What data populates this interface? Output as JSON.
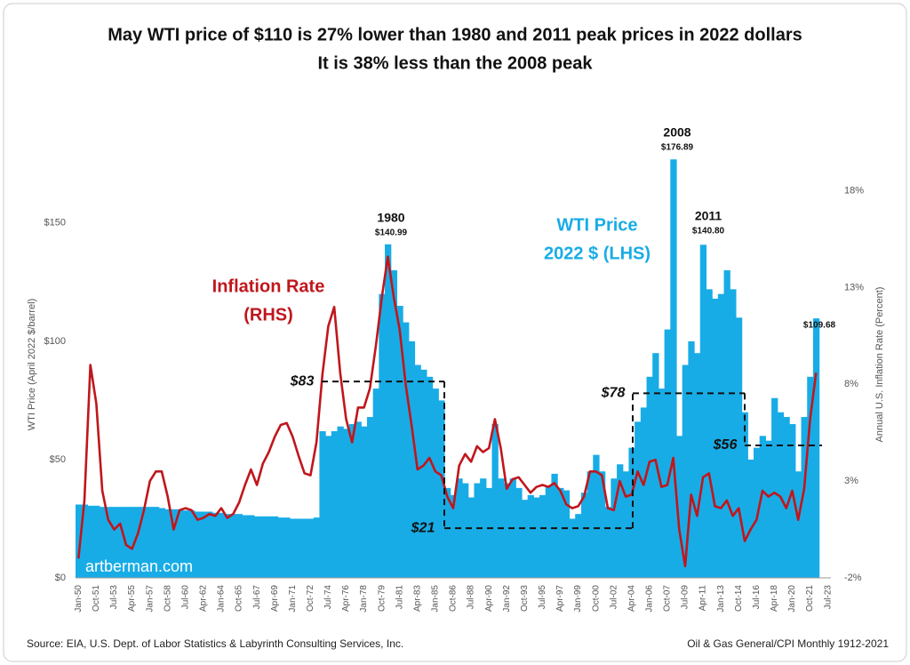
{
  "chart_data": {
    "type": "bar",
    "title": "May WTI price of $110 is 27% lower than 1980 and 2011 peak prices in 2022 dollars",
    "subtitle": "It is 38% less than the 2008 peak",
    "y_label": "WTI Price (April 2022 $/barrel)",
    "y2_label": "Annual U.S. Inflation Rate (Percent)",
    "source": "Source: EIA, U.S. Dept. of Labor Statistics & Labyrinth Consulting Services, Inc.",
    "note": "Oil & Gas General/CPI Monthly 1912-2021",
    "watermark": "artberman.com",
    "grid": false,
    "ylim": [
      0,
      180
    ],
    "yticks": [
      {
        "value": 0,
        "label": "$0"
      },
      {
        "value": 50,
        "label": "$50"
      },
      {
        "value": 100,
        "label": "$100"
      },
      {
        "value": 150,
        "label": "$150"
      }
    ],
    "y2lim": [
      -2,
      20
    ],
    "y2ticks": [
      {
        "value": -2,
        "label": "-2%"
      },
      {
        "value": 3,
        "label": "3%"
      },
      {
        "value": 8,
        "label": "8%"
      },
      {
        "value": 13,
        "label": "13%"
      },
      {
        "value": 18,
        "label": "18%"
      }
    ],
    "categories": [
      "Jan-50",
      null,
      null,
      "Oct-51",
      null,
      null,
      "Jul-53",
      null,
      null,
      "Apr-55",
      null,
      null,
      "Jan-57",
      null,
      null,
      "Oct-58",
      null,
      null,
      "Jul-60",
      null,
      null,
      "Apr-62",
      null,
      null,
      "Jan-64",
      null,
      null,
      "Oct-65",
      null,
      null,
      "Jul-67",
      null,
      null,
      "Apr-69",
      null,
      null,
      "Jan-71",
      null,
      null,
      "Oct-72",
      null,
      null,
      "Jul-74",
      null,
      null,
      "Apr-76",
      null,
      null,
      "Jan-78",
      null,
      null,
      "Oct-79",
      null,
      null,
      "Jul-81",
      null,
      null,
      "Apr-83",
      null,
      null,
      "Jan-85",
      null,
      null,
      "Oct-86",
      null,
      null,
      "Jul-88",
      null,
      null,
      "Apr-90",
      null,
      null,
      "Jan-92",
      null,
      null,
      "Oct-93",
      null,
      null,
      "Jul-95",
      null,
      null,
      "Apr-97",
      null,
      null,
      "Jan-99",
      null,
      null,
      "Oct-00",
      null,
      null,
      "Jul-02",
      null,
      null,
      "Apr-04",
      null,
      null,
      "Jan-06",
      null,
      null,
      "Oct-07",
      null,
      null,
      "Jul-09",
      null,
      null,
      "Apr-11",
      null,
      null,
      "Jan-13",
      null,
      null,
      "Oct-14",
      null,
      null,
      "Jul-16",
      null,
      null,
      "Apr-18",
      null,
      null,
      "Jan-20",
      null,
      null,
      "Oct-21",
      null,
      null,
      "Jul-23"
    ],
    "series": [
      {
        "name": "WTI Price",
        "color": "#18ace6",
        "values": [
          31,
          31,
          30.5,
          30.5,
          30,
          30,
          30,
          30,
          30,
          30,
          30,
          30,
          30,
          30,
          29.5,
          29,
          29,
          29,
          28.5,
          28.5,
          28,
          28,
          28,
          27.5,
          27.5,
          27,
          27,
          27,
          26.5,
          26.5,
          26,
          26,
          26,
          26,
          25.5,
          25.5,
          25,
          25,
          25,
          25,
          25.5,
          62,
          60,
          62,
          64,
          63,
          65,
          66,
          64,
          68,
          80,
          120,
          140.99,
          130,
          115,
          108,
          100,
          90,
          88,
          85,
          80,
          75,
          38,
          35,
          42,
          40,
          34,
          40,
          42,
          38,
          65,
          42,
          40,
          42,
          38,
          33,
          35,
          34,
          35,
          39,
          44,
          38,
          37,
          25,
          27,
          36,
          45,
          52,
          45,
          30,
          42,
          48,
          45,
          55,
          66,
          72,
          85,
          95,
          80,
          105,
          176.89,
          60,
          90,
          100,
          95,
          140.8,
          122,
          118,
          120,
          130,
          122,
          110,
          70,
          50,
          55,
          60,
          58,
          76,
          70,
          68,
          65,
          45,
          68,
          85,
          109.68,
          null,
          null
        ]
      },
      {
        "name": "Inflation Rate",
        "type": "line",
        "axis": "y2",
        "color": "#c0161c",
        "values": [
          -1,
          2,
          9,
          7,
          2.5,
          1,
          0.5,
          0.8,
          -0.3,
          -0.5,
          0.3,
          1.5,
          3,
          3.5,
          3.5,
          2.2,
          0.5,
          1.5,
          1.6,
          1.5,
          1,
          1.1,
          1.3,
          1.2,
          1.6,
          1.1,
          1.3,
          1.9,
          2.8,
          3.6,
          2.8,
          3.9,
          4.5,
          5.3,
          5.9,
          6,
          5.3,
          4.3,
          3.4,
          3.3,
          5,
          8.5,
          11,
          12,
          8.6,
          6.2,
          5,
          6.8,
          6.8,
          7.8,
          10,
          12.5,
          14.6,
          12.5,
          10.8,
          8,
          5.9,
          3.6,
          3.8,
          4.2,
          3.5,
          3.3,
          2.2,
          1.6,
          3.8,
          4.4,
          4,
          4.8,
          4.5,
          4.7,
          6.2,
          4.7,
          2.6,
          3.1,
          3.2,
          2.8,
          2.4,
          2.7,
          2.8,
          2.7,
          2.9,
          2.5,
          1.8,
          1.6,
          1.7,
          2.2,
          3.5,
          3.5,
          3.3,
          1.6,
          1.5,
          3,
          2.2,
          2.3,
          3.5,
          2.8,
          4,
          4.1,
          2.7,
          2.8,
          4.2,
          0.5,
          -1.4,
          2.3,
          1.2,
          3.2,
          3.4,
          1.7,
          1.6,
          2,
          1.2,
          1.6,
          -0.1,
          0.5,
          1,
          2.5,
          2.2,
          2.4,
          2.2,
          1.6,
          2.5,
          1,
          2.6,
          6.2,
          8.6,
          null,
          null
        ]
      }
    ],
    "series_labels": [
      [
        "WTI Price",
        "2022 $ (LHS)"
      ],
      [
        "Inflation Rate",
        "(RHS)"
      ]
    ],
    "peaks": [
      {
        "year": "1980",
        "value": 140.99,
        "label": "$140.99"
      },
      {
        "year": "2008",
        "value": 176.89,
        "label": "$176.89"
      },
      {
        "year": "2011",
        "value": 140.8,
        "label": "$140.80"
      },
      {
        "value": 109.68,
        "label": "$109.68"
      }
    ],
    "reference_lines": [
      {
        "value": 83,
        "label": "$83"
      },
      {
        "value": 21,
        "label": "$21"
      },
      {
        "value": 78,
        "label": "$78"
      },
      {
        "value": 56,
        "label": "$56"
      }
    ]
  }
}
